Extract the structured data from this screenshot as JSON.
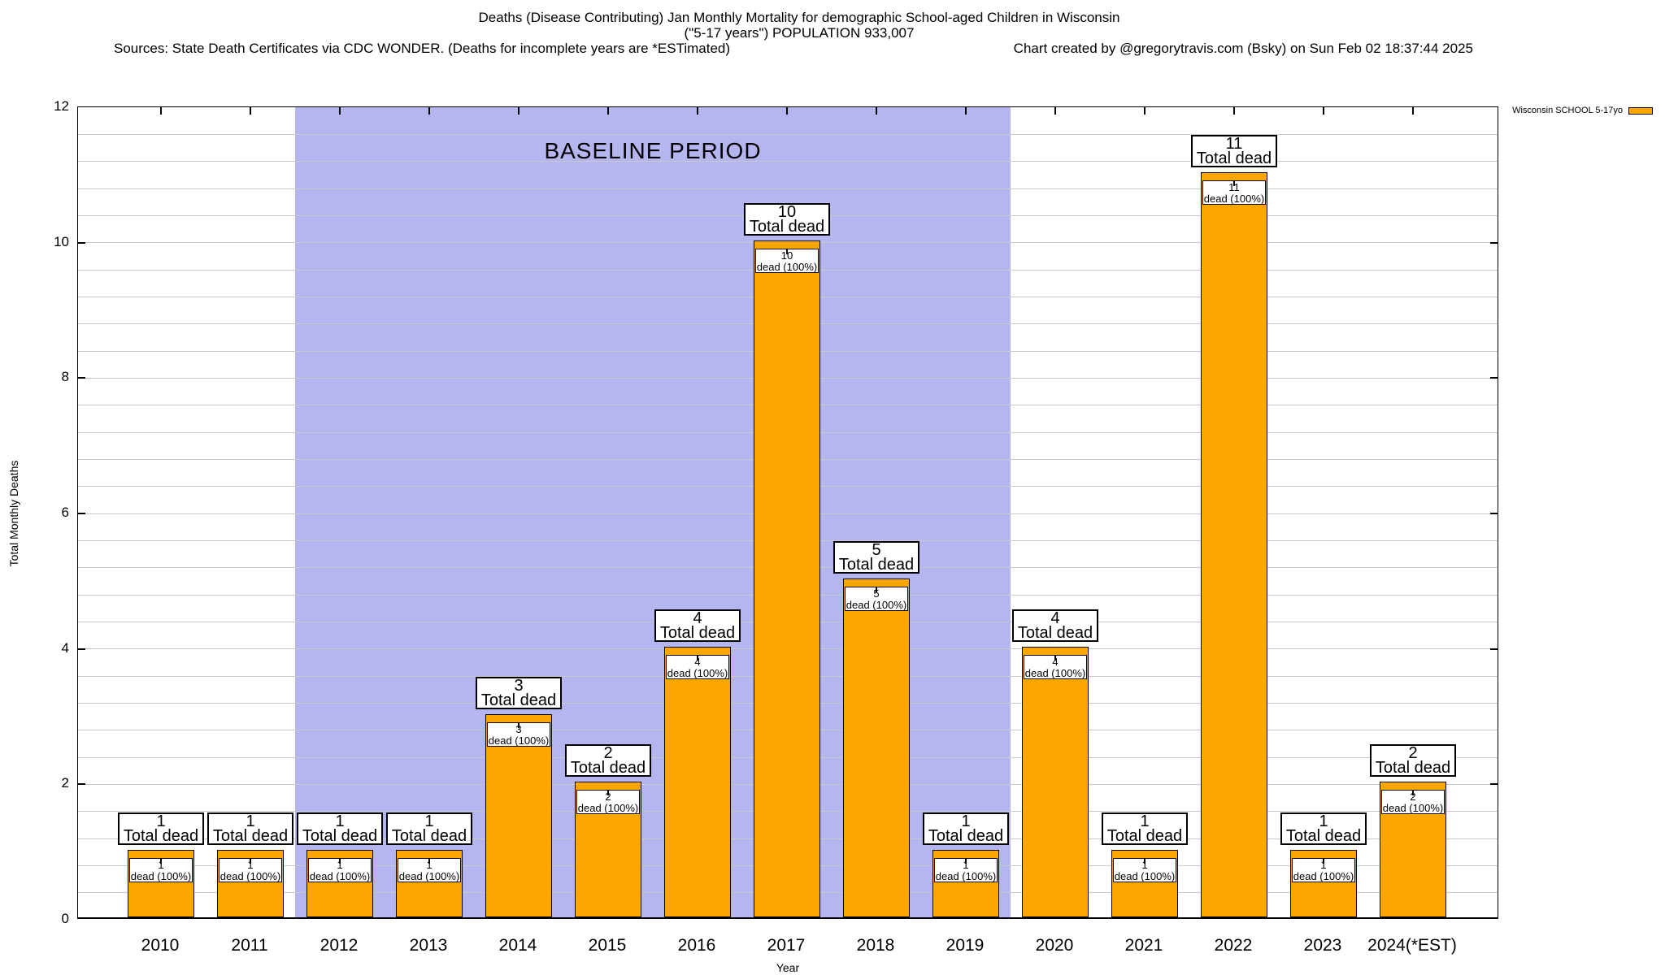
{
  "header": {
    "title_line1": "Deaths (Disease Contributing) Jan Monthly Mortality for demographic School-aged Children in Wisconsin",
    "title_line2": "(\"5-17 years\") POPULATION 933,007",
    "sources": "Sources: State Death Certificates via CDC WONDER. (Deaths for incomplete years are *ESTimated)",
    "credit": "Chart created by @gregorytravis.com (Bsky) on Sun Feb 02 18:37:44 2025"
  },
  "legend": {
    "label": "Wisconsin SCHOOL 5-17yo",
    "swatch_color": "#FFA500"
  },
  "axes": {
    "ylabel": "Total Monthly Deaths",
    "xlabel": "Year",
    "yticks": [
      0,
      2,
      4,
      6,
      8,
      10,
      12
    ],
    "minor_grid_step": 0.4
  },
  "annotations": {
    "outer_label": "Total dead",
    "inner_label": "dead (100%)",
    "baseline_label": "BASELINE PERIOD"
  },
  "colors": {
    "bar_fill": "#FFA500",
    "bar_border": "#000000",
    "baseline_band": "#b5b5ef",
    "grid": "#c9c9c9"
  },
  "chart_data": {
    "type": "bar",
    "title": "Deaths (Disease Contributing) Jan Monthly Mortality for demographic School-aged Children in Wisconsin (\"5-17 years\") POPULATION 933,007",
    "xlabel": "Year",
    "ylabel": "Total Monthly Deaths",
    "ylim": [
      0,
      12
    ],
    "grid": true,
    "legend_position": "top-right",
    "series_name": "Wisconsin SCHOOL 5-17yo",
    "categories": [
      "2010",
      "2011",
      "2012",
      "2013",
      "2014",
      "2015",
      "2016",
      "2017",
      "2018",
      "2019",
      "2020",
      "2021",
      "2022",
      "2023",
      "2024(*EST)"
    ],
    "values": [
      1,
      1,
      1,
      1,
      3,
      2,
      4,
      10,
      5,
      1,
      4,
      1,
      11,
      1,
      2
    ],
    "bar_labels_above": [
      "1 Total dead",
      "1 Total dead",
      "1 Total dead",
      "1 Total dead",
      "3 Total dead",
      "2 Total dead",
      "4 Total dead",
      "10 Total dead",
      "5 Total dead",
      "1 Total dead",
      "4 Total dead",
      "1 Total dead",
      "11 Total dead",
      "1 Total dead",
      "2 Total dead"
    ],
    "bar_labels_inner": [
      "1 dead (100%)",
      "1 dead (100%)",
      "1 dead (100%)",
      "1 dead (100%)",
      "3 dead (100%)",
      "2 dead (100%)",
      "4 dead (100%)",
      "10 dead (100%)",
      "5 dead (100%)",
      "1 dead (100%)",
      "4 dead (100%)",
      "1 dead (100%)",
      "11 dead (100%)",
      "1 dead (100%)",
      "2 dead (100%)"
    ],
    "baseline_period": {
      "label": "BASELINE PERIOD",
      "from": "2012",
      "to": "2019"
    }
  }
}
